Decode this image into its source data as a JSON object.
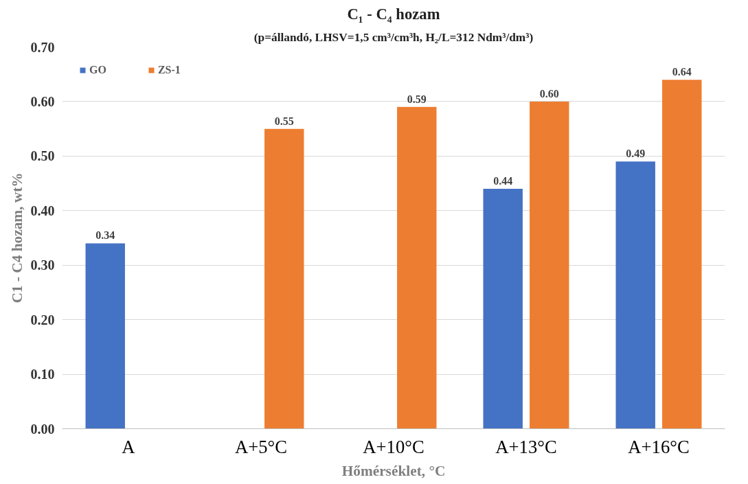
{
  "chart_data": {
    "type": "bar",
    "title": "C₁ - C₄ hozam",
    "subtitle": "(p=állandó, LHSV=1,5 cm³/cm³h, H₂/L=312 Ndm³/dm³)",
    "xlabel": "Hőmérséklet, °C",
    "ylabel": "C1 - C4 hozam, wt%",
    "categories": [
      "A",
      "A+5°C",
      "A+10°C",
      "A+13°C",
      "A+16°C"
    ],
    "series": [
      {
        "name": "GO",
        "color": "#4472c4",
        "values": [
          0.34,
          null,
          null,
          0.44,
          0.49
        ],
        "value_labels": [
          "0.34",
          null,
          null,
          "0.44",
          "0.49"
        ]
      },
      {
        "name": "ZS-1",
        "color": "#ed7d31",
        "values": [
          null,
          0.55,
          0.59,
          0.6,
          0.64
        ],
        "value_labels": [
          null,
          "0.55",
          "0.59",
          "0.60",
          "0.64"
        ]
      }
    ],
    "ylim": [
      0,
      0.7
    ],
    "yticks": [
      {
        "value": 0,
        "label": "0.00"
      },
      {
        "value": 0.1,
        "label": "0.10"
      },
      {
        "value": 0.2,
        "label": "0.20"
      },
      {
        "value": 0.3,
        "label": "0.30"
      },
      {
        "value": 0.4,
        "label": "0.40"
      },
      {
        "value": 0.5,
        "label": "0.50"
      },
      {
        "value": 0.6,
        "label": "0.60"
      },
      {
        "value": 0.7,
        "label": "0.70"
      }
    ],
    "grid": "y",
    "legend": "top left"
  }
}
